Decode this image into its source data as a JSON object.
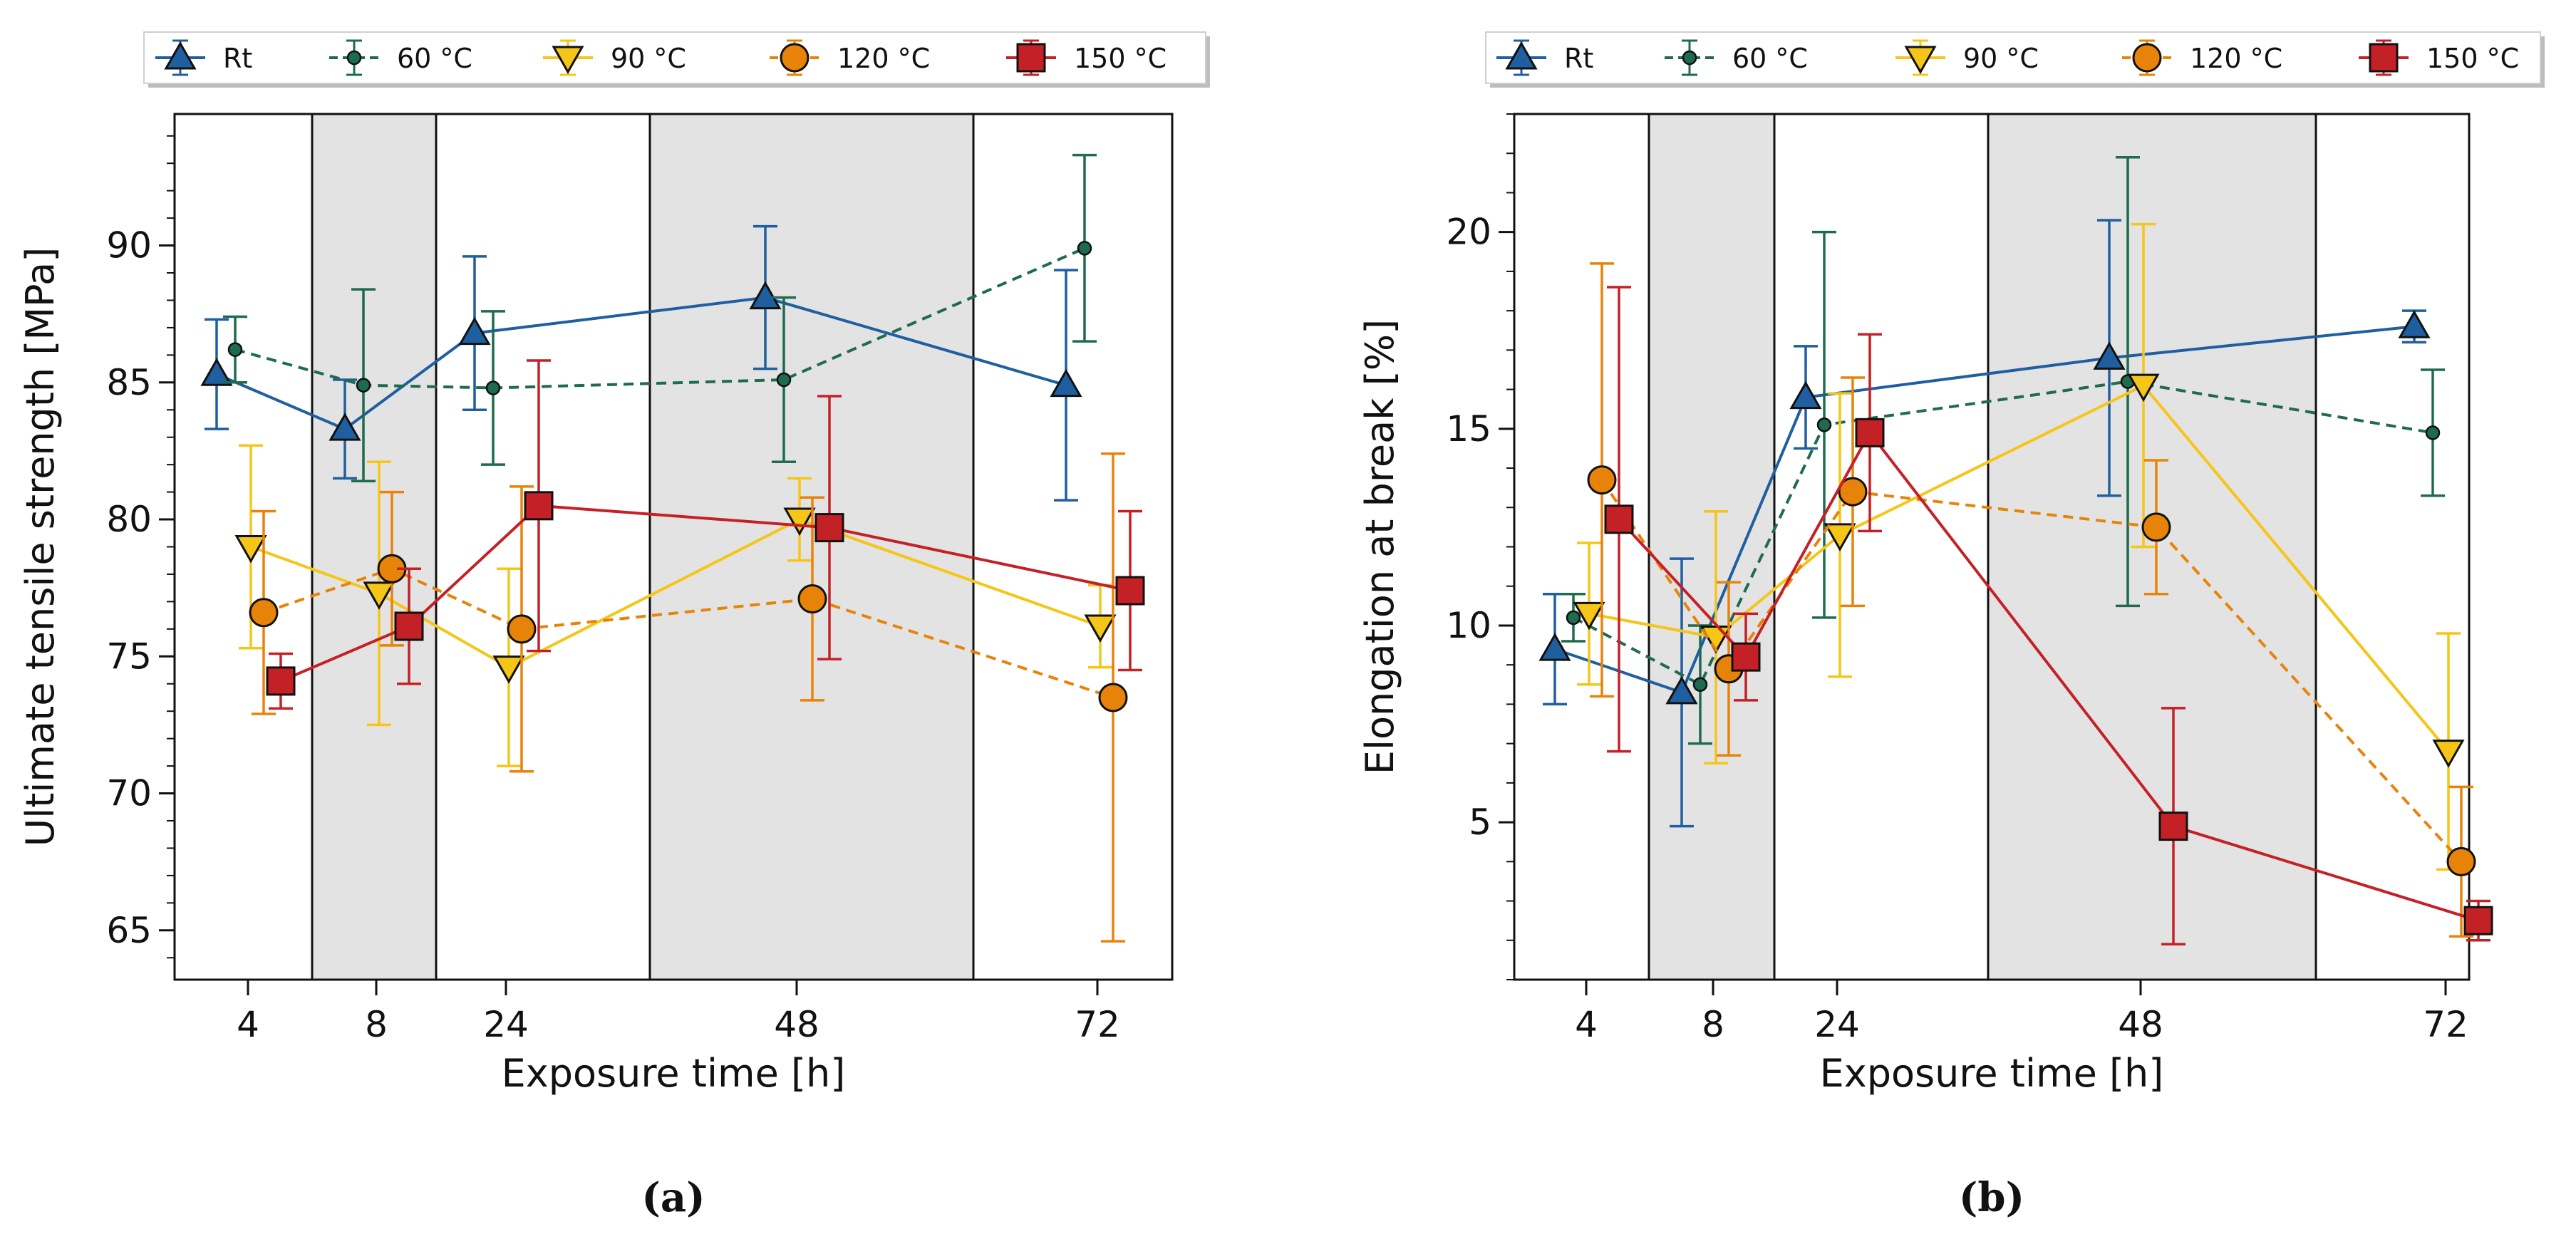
{
  "chart_data": [
    {
      "id": "a",
      "type": "line",
      "panel_label": "(a)",
      "xlabel": "Exposure time [h]",
      "ylabel": "Ultimate tensile strength [MPa]",
      "categories": [
        "4",
        "8",
        "24",
        "48",
        "72"
      ],
      "ylim": [
        63.2,
        94.8
      ],
      "yticks": [
        "65",
        "70",
        "75",
        "80",
        "85",
        "90"
      ],
      "shaded_categories": [
        "8",
        "48"
      ],
      "legend_position": "top",
      "series": [
        {
          "name": "Rt",
          "color": "#1f5fa0",
          "marker": "triangle-up",
          "dashed": false,
          "values": [
            85.3,
            83.3,
            86.8,
            88.1,
            84.9
          ],
          "errors": [
            2.0,
            1.8,
            2.8,
            2.6,
            4.2
          ]
        },
        {
          "name": "60 °C",
          "color": "#1e6b4e",
          "marker": "dot",
          "dashed": true,
          "values": [
            86.2,
            84.9,
            84.8,
            85.1,
            89.9
          ],
          "errors": [
            1.2,
            3.5,
            2.8,
            3.0,
            3.4
          ]
        },
        {
          "name": "90 °C",
          "color": "#f5c518",
          "marker": "triangle-down",
          "dashed": false,
          "values": [
            79.0,
            77.3,
            74.6,
            80.0,
            76.1
          ],
          "errors": [
            3.7,
            4.8,
            3.6,
            1.5,
            1.5
          ]
        },
        {
          "name": "120 °C",
          "color": "#e8830a",
          "marker": "circle",
          "dashed": true,
          "values": [
            76.6,
            78.2,
            76.0,
            77.1,
            73.5
          ],
          "errors": [
            3.7,
            2.8,
            5.2,
            3.7,
            8.9
          ]
        },
        {
          "name": "150 °C",
          "color": "#c42127",
          "marker": "square",
          "dashed": false,
          "values": [
            74.1,
            76.1,
            80.5,
            79.7,
            77.4
          ],
          "errors": [
            1.0,
            2.1,
            5.3,
            4.8,
            2.9
          ]
        }
      ]
    },
    {
      "id": "b",
      "type": "line",
      "panel_label": "(b)",
      "xlabel": "Exposure time [h]",
      "ylabel": "Elongation at break [%]",
      "categories": [
        "4",
        "8",
        "24",
        "48",
        "72"
      ],
      "ylim": [
        1.0,
        23.0
      ],
      "yticks": [
        "5",
        "10",
        "15",
        "20"
      ],
      "shaded_categories": [
        "8",
        "48"
      ],
      "legend_position": "top",
      "series": [
        {
          "name": "Rt",
          "color": "#1f5fa0",
          "marker": "triangle-up",
          "dashed": false,
          "values": [
            9.4,
            8.3,
            15.8,
            16.8,
            17.6
          ],
          "errors": [
            1.4,
            3.4,
            1.3,
            3.5,
            0.4
          ]
        },
        {
          "name": "60 °C",
          "color": "#1e6b4e",
          "marker": "dot",
          "dashed": true,
          "values": [
            10.2,
            8.5,
            15.1,
            16.2,
            14.9
          ],
          "errors": [
            0.6,
            1.5,
            4.9,
            5.7,
            1.6
          ]
        },
        {
          "name": "90 °C",
          "color": "#f5c518",
          "marker": "triangle-down",
          "dashed": false,
          "values": [
            10.3,
            9.7,
            12.3,
            16.1,
            6.8
          ],
          "errors": [
            1.8,
            3.2,
            3.6,
            4.1,
            3.0
          ]
        },
        {
          "name": "120 °C",
          "color": "#e8830a",
          "marker": "circle",
          "dashed": true,
          "values": [
            13.7,
            8.9,
            13.4,
            12.5,
            4.0
          ],
          "errors": [
            5.5,
            2.2,
            2.9,
            1.7,
            1.9
          ]
        },
        {
          "name": "150 °C",
          "color": "#c42127",
          "marker": "square",
          "dashed": false,
          "values": [
            12.7,
            9.2,
            14.9,
            4.9,
            2.5
          ],
          "errors": [
            5.9,
            1.1,
            2.5,
            3.0,
            0.5
          ]
        }
      ]
    }
  ]
}
